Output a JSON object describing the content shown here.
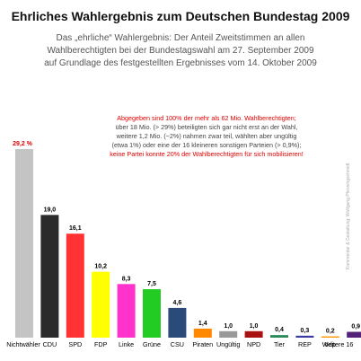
{
  "title": "Ehrliches Wahlergebnis zum Deutschen Bundestag 2009",
  "subtitle_lines": [
    "Das „ehrliche“ Wahlergebnis: Der Anteil Zweitstimmen an allen",
    "Wahlberechtigten bei der Bundestagswahl am 27. September 2009",
    "auf Grundlage des festgestellten Ergebnisses vom  14. Oktober 2009"
  ],
  "notes": [
    {
      "text": "Abgegeben sind 100% der mehr als 62 Mio. Wahlberechtigten;",
      "color": "red"
    },
    {
      "text": "über 18 Mio. (> 29%) beteiligten sich gar nicht erst an der Wahl,",
      "color": "gray"
    },
    {
      "text": "weitere 1,2 Mio. (~2%) nahmen zwar teil, wählten aber ungültig",
      "color": "gray"
    },
    {
      "text": "(etwa 1%) oder eine der 16 kleineren sonstigen Parteien (> 0,9%);",
      "color": "gray"
    },
    {
      "text": "keine Partei konnte 20% der Wahlberechtigten für sich mobilisieren!",
      "color": "red"
    }
  ],
  "credit": "Kommentar & Gestaltung: Wolfgang Pfenningschmidt",
  "chart_data": {
    "type": "bar",
    "categories": [
      "Nichtwähler",
      "CDU",
      "SPD",
      "FDP",
      "Linke",
      "Grüne",
      "CSU",
      "Piraten",
      "Ungültig",
      "NPD",
      "Tier",
      "REP",
      "ödp",
      "Weitere 16"
    ],
    "values": [
      29.2,
      19.0,
      16.1,
      10.2,
      8.3,
      7.5,
      4.6,
      1.4,
      1.0,
      1.0,
      0.4,
      0.3,
      0.2,
      0.9
    ],
    "value_labels": [
      "29,2 %",
      "19,0",
      "16,1",
      "10,2",
      "8,3",
      "7,5",
      "4,6",
      "1,4",
      "1,0",
      "1,0",
      "0,4",
      "0,3",
      "0,2",
      "0,9"
    ],
    "colors": [
      "#c4c4c4",
      "#2b2b2b",
      "#ff3333",
      "#ffff00",
      "#ff33cc",
      "#22cc22",
      "#2a4a7a",
      "#ff8800",
      "#999999",
      "#aa1111",
      "#2a8a5a",
      "#3a3aa0",
      "#ff9900",
      "#55227a"
    ],
    "highlight_label_color": "#e00000",
    "ylim": [
      0,
      30
    ]
  }
}
